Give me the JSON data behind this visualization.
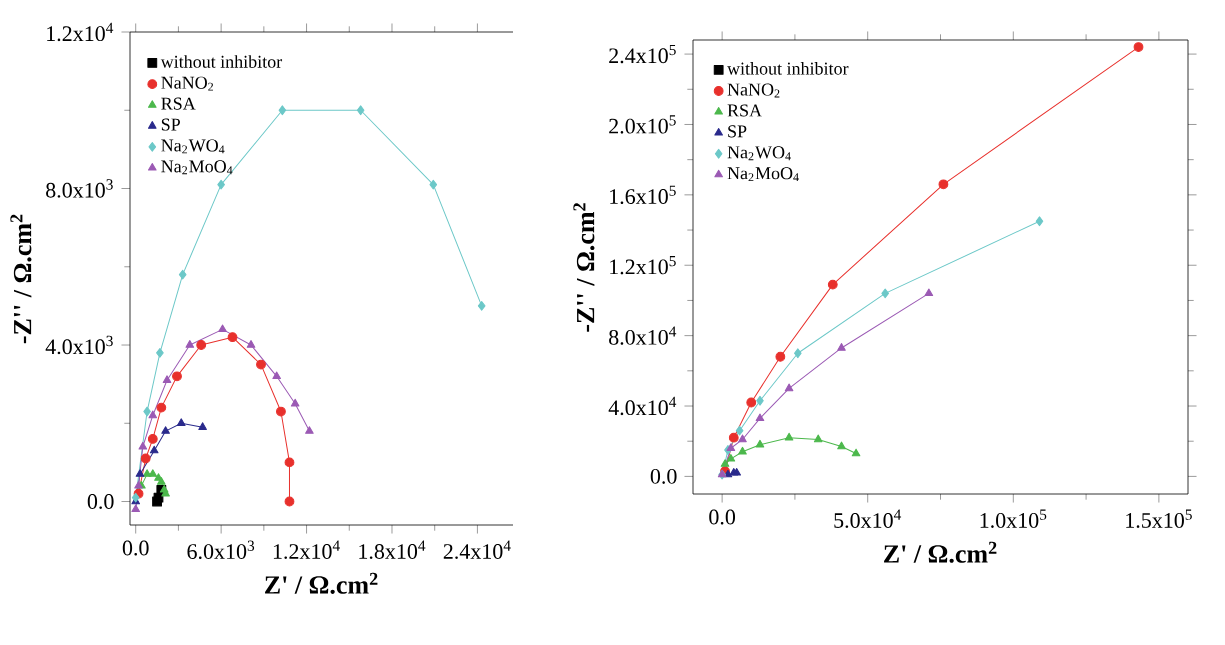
{
  "chart_data": [
    {
      "type": "line",
      "xlabel": "Z' / Ω.cm$^{2}$",
      "ylabel": "-Z'' / Ω.cm$^{2}$",
      "xlim": [
        -400,
        26500
      ],
      "ylim": [
        -600,
        12000
      ],
      "xticks": [
        {
          "value": 0,
          "label": "0.0"
        },
        {
          "value": 6000,
          "label": "6.0x10$^{3}$"
        },
        {
          "value": 12000,
          "label": "1.2x10$^{4}$"
        },
        {
          "value": 18000,
          "label": "1.8x10$^{4}$"
        },
        {
          "value": 24000,
          "label": "2.4x10$^{4}$"
        }
      ],
      "yticks": [
        {
          "value": 0,
          "label": "0.0"
        },
        {
          "value": 4000,
          "label": "4.0x10$^{3}$"
        },
        {
          "value": 8000,
          "label": "8.0x10$^{3}$"
        },
        {
          "value": 12000,
          "label": "1.2x10$^{4}$"
        }
      ],
      "legend": "top left",
      "grid": false,
      "line_style": "solid",
      "series": [
        {
          "name": "without inhibitor",
          "type": "scatter",
          "color": "#000000",
          "marker": "square",
          "x": [
            1500,
            1600,
            1800
          ],
          "values": [
            0,
            100,
            300
          ]
        },
        {
          "name": "NaNO$_{2}$",
          "color": "#e8302c",
          "marker": "circle",
          "x": [
            200,
            700,
            1200,
            1800,
            2900,
            4600,
            6800,
            8800,
            10200,
            10800,
            10800
          ],
          "values": [
            200,
            1100,
            1600,
            2400,
            3200,
            4000,
            4200,
            3500,
            2300,
            1000,
            0
          ]
        },
        {
          "name": "RSA",
          "color": "#4cb84c",
          "marker": "triangle",
          "x": [
            400,
            800,
            1200,
            1600,
            1800,
            2000,
            2100
          ],
          "values": [
            400,
            700,
            700,
            600,
            500,
            300,
            200
          ]
        },
        {
          "name": "SP",
          "color": "#2a2a8c",
          "marker": "triangle",
          "x": [
            0,
            300,
            1300,
            2100,
            3200,
            4700
          ],
          "values": [
            0,
            700,
            1300,
            1800,
            2000,
            1900
          ]
        },
        {
          "name": "Na$_{2}$WO$_{4}$",
          "color": "#6cc8c8",
          "marker": "diamond",
          "x": [
            0,
            800,
            1700,
            3300,
            6000,
            10300,
            15800,
            20900,
            24300
          ],
          "values": [
            100,
            2300,
            3800,
            5800,
            8100,
            10000,
            10000,
            8100,
            5000
          ]
        },
        {
          "name": "Na$_{2}$MoO$_{4}$",
          "color": "#9b5ab4",
          "marker": "triangle",
          "x": [
            0,
            200,
            500,
            1200,
            2200,
            3800,
            6100,
            8100,
            9900,
            11200,
            12200
          ],
          "values": [
            -200,
            400,
            1400,
            2200,
            3100,
            4000,
            4400,
            4000,
            3200,
            2500,
            1800
          ]
        }
      ]
    },
    {
      "type": "line",
      "xlabel": "Z' / Ω.cm$^{2}$",
      "ylabel": "-Z'' / Ω.cm$^{2}$",
      "xlim": [
        -10000,
        160000
      ],
      "ylim": [
        -10000,
        248000
      ],
      "xticks": [
        {
          "value": 0,
          "label": "0.0"
        },
        {
          "value": 50000,
          "label": "5.0x10$^{4}$"
        },
        {
          "value": 100000,
          "label": "1.0x10$^{5}$"
        },
        {
          "value": 150000,
          "label": "1.5x10$^{5}$"
        }
      ],
      "yticks": [
        {
          "value": 0,
          "label": "0.0"
        },
        {
          "value": 40000,
          "label": "4.0x10$^{4}$"
        },
        {
          "value": 80000,
          "label": "8.0x10$^{4}$"
        },
        {
          "value": 120000,
          "label": "1.2x10$^{5}$"
        },
        {
          "value": 160000,
          "label": "1.6x10$^{5}$"
        },
        {
          "value": 200000,
          "label": "2.0x10$^{5}$"
        },
        {
          "value": 240000,
          "label": "2.4x10$^{5}$"
        }
      ],
      "legend": "top left",
      "grid": false,
      "line_style": "solid",
      "series": [
        {
          "name": "without inhibitor",
          "color": "#000000",
          "marker": "square"
        },
        {
          "name": "NaNO$_{2}$",
          "color": "#e8302c",
          "marker": "circle",
          "x": [
            1000,
            4000,
            10000,
            20000,
            38000,
            76000,
            143000
          ],
          "values": [
            3000,
            22000,
            42000,
            68000,
            109000,
            166000,
            244000
          ]
        },
        {
          "name": "RSA",
          "color": "#4cb84c",
          "marker": "triangle",
          "x": [
            1000,
            3000,
            7000,
            13000,
            23000,
            33000,
            41000,
            46000
          ],
          "values": [
            7000,
            10000,
            14000,
            18000,
            22000,
            21000,
            17000,
            13000
          ]
        },
        {
          "name": "SP",
          "type": "scatter",
          "color": "#2a2a8c",
          "marker": "triangle",
          "x": [
            2000,
            4000,
            5000
          ],
          "values": [
            1000,
            2000,
            2000
          ]
        },
        {
          "name": "Na$_{2}$WO$_{4}$",
          "color": "#6cc8c8",
          "marker": "diamond",
          "x": [
            0,
            2000,
            6000,
            13000,
            26000,
            56000,
            109000
          ],
          "values": [
            1000,
            15000,
            26000,
            43000,
            70000,
            104000,
            145000
          ]
        },
        {
          "name": "Na$_{2}$MoO$_{4}$",
          "color": "#9b5ab4",
          "marker": "triangle",
          "x": [
            0,
            3000,
            7000,
            13000,
            23000,
            41000,
            71000
          ],
          "values": [
            1000,
            16000,
            21000,
            33000,
            50000,
            73000,
            104000
          ]
        }
      ]
    }
  ]
}
